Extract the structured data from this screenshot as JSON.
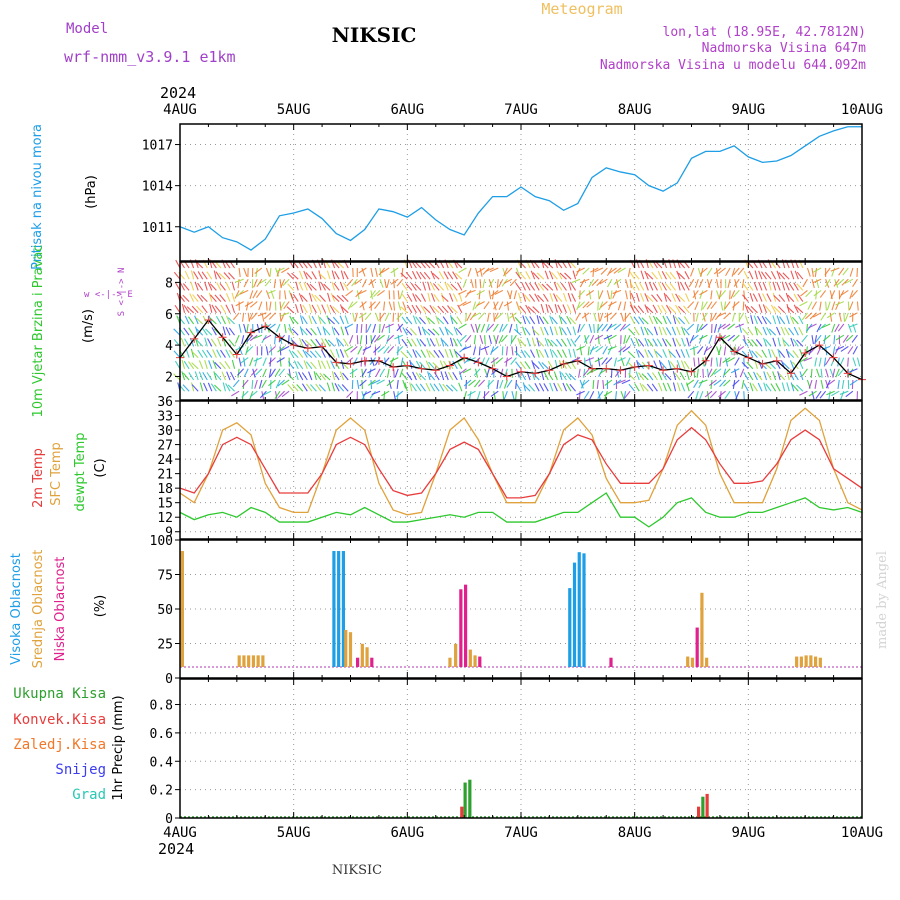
{
  "header": {
    "model_label": "Model",
    "model_name": "wrf-nmm_v3.9.1 e1km",
    "station": "NIKSIC",
    "chart_kind": "Meteogram",
    "coords": "lon,lat (18.95E, 42.7812N)",
    "altitude": "Nadmorska Visina 647m",
    "model_altitude": "Nadmorska Visina u modelu 644.092m",
    "footer_station": "NIKSIC",
    "credit": "made by Angel"
  },
  "colors": {
    "pressure": "#1e9ee6",
    "t2m": "#e83c3c",
    "sfc": "#e0a23c",
    "dew": "#2ec82e",
    "high_cloud": "#1e9ee6",
    "mid_cloud": "#e0a23c",
    "low_cloud": "#e0208c",
    "total_precip": "#2ea02e",
    "conv_precip": "#e83c3c",
    "frz_precip": "#f07828",
    "snow": "#3c3cf0",
    "grad": "#28c8b4",
    "wind_label": "#2ec82e"
  },
  "chart_data": [
    {
      "type": "line",
      "title": "",
      "ylabel": "Pritisak na nivou mora",
      "unit": "(hPa)",
      "x_ticks": [
        "4AUG",
        "5AUG",
        "6AUG",
        "7AUG",
        "8AUG",
        "9AUG",
        "10AUG"
      ],
      "year": "2024",
      "ylim": [
        1008.5,
        1018.5
      ],
      "yticks": [
        1011,
        1014,
        1017
      ],
      "x_hours": [
        0,
        3,
        6,
        9,
        12,
        15,
        18,
        21,
        24,
        27,
        30,
        33,
        36,
        39,
        42,
        45,
        48,
        51,
        54,
        57,
        60,
        63,
        66,
        69,
        72,
        75,
        78,
        81,
        84,
        87,
        90,
        93,
        96,
        99,
        102,
        105,
        108,
        111,
        114,
        117,
        120,
        123,
        126,
        129,
        132,
        135,
        138,
        141,
        144
      ],
      "series": [
        {
          "name": "Pritisak na nivou mora",
          "values": [
            1011.0,
            1010.6,
            1011.0,
            1010.2,
            1009.9,
            1009.3,
            1010.1,
            1011.8,
            1012.0,
            1012.3,
            1011.6,
            1010.5,
            1010.0,
            1010.8,
            1012.3,
            1012.1,
            1011.7,
            1012.4,
            1011.5,
            1010.8,
            1010.4,
            1012.0,
            1013.2,
            1013.2,
            1013.9,
            1013.2,
            1012.9,
            1012.2,
            1012.7,
            1014.6,
            1015.3,
            1015.0,
            1014.8,
            1014.0,
            1013.6,
            1014.2,
            1016.0,
            1016.5,
            1016.5,
            1016.9,
            1016.1,
            1015.7,
            1015.8,
            1016.2,
            1016.9,
            1017.6,
            1018.0,
            1018.3,
            1018.3
          ]
        }
      ],
      "grid": true
    },
    {
      "type": "scatter",
      "title": "",
      "ylabel": "10m Vjetar Brzina i Pravac",
      "unit": "(m/s)",
      "direction_key": "w <-|-> E",
      "direction_key_ns": "S <-|-> N",
      "ylim": [
        0.5,
        9.3
      ],
      "yticks": [
        2,
        4,
        6,
        8
      ],
      "x_hours": [
        0,
        3,
        6,
        9,
        12,
        15,
        18,
        21,
        24,
        27,
        30,
        33,
        36,
        39,
        42,
        45,
        48,
        51,
        54,
        57,
        60,
        63,
        66,
        69,
        72,
        75,
        78,
        81,
        84,
        87,
        90,
        93,
        96,
        99,
        102,
        105,
        108,
        111,
        114,
        117,
        120,
        123,
        126,
        129,
        132,
        135,
        138,
        141,
        144
      ],
      "series": [
        {
          "name": "10m Vjetar",
          "values": [
            3.2,
            4.4,
            5.6,
            4.5,
            3.4,
            4.8,
            5.2,
            4.5,
            4.0,
            3.8,
            3.9,
            2.9,
            2.8,
            3.0,
            3.0,
            2.6,
            2.7,
            2.5,
            2.4,
            2.7,
            3.2,
            2.9,
            2.5,
            2.0,
            2.3,
            2.2,
            2.4,
            2.8,
            3.0,
            2.5,
            2.5,
            2.4,
            2.6,
            2.7,
            2.4,
            2.5,
            2.3,
            3.0,
            4.5,
            3.6,
            3.2,
            2.8,
            3.0,
            2.2,
            3.5,
            4.0,
            3.2,
            2.2,
            1.8
          ]
        }
      ],
      "grid": true
    },
    {
      "type": "line",
      "title": "",
      "ylabels": [
        "2m Temp",
        "SFC Temp",
        "dewpt Temp"
      ],
      "unit": "(C)",
      "ylim": [
        7.5,
        36
      ],
      "yticks": [
        9,
        12,
        15,
        18,
        21,
        24,
        27,
        30,
        33,
        36
      ],
      "x_hours": [
        0,
        3,
        6,
        9,
        12,
        15,
        18,
        21,
        24,
        27,
        30,
        33,
        36,
        39,
        42,
        45,
        48,
        51,
        54,
        57,
        60,
        63,
        66,
        69,
        72,
        75,
        78,
        81,
        84,
        87,
        90,
        93,
        96,
        99,
        102,
        105,
        108,
        111,
        114,
        117,
        120,
        123,
        126,
        129,
        132,
        135,
        138,
        141,
        144
      ],
      "series": [
        {
          "name": "2m Temp",
          "values": [
            18,
            17,
            21,
            27,
            28.5,
            27,
            22,
            17,
            17,
            17,
            21,
            27,
            28.5,
            27,
            22,
            17.5,
            16.5,
            17,
            21,
            26,
            27.5,
            26,
            21,
            16,
            16,
            16.5,
            21,
            27,
            29,
            28,
            23,
            19,
            19,
            19,
            22,
            28,
            30.5,
            28,
            23,
            19,
            19,
            19.5,
            23,
            28,
            30,
            28,
            22,
            20,
            18
          ]
        },
        {
          "name": "SFC Temp",
          "values": [
            17,
            15,
            21,
            30,
            31.5,
            29,
            19,
            14,
            13,
            13,
            21,
            30,
            32.5,
            30,
            19,
            13.5,
            12.5,
            13,
            21,
            30,
            32.5,
            28,
            21,
            15,
            15,
            15,
            21,
            30,
            32.5,
            29,
            20,
            15,
            15,
            15.5,
            22,
            31,
            34,
            31,
            21,
            15,
            15,
            15,
            22,
            32,
            34.5,
            32,
            22,
            15,
            13.5
          ]
        },
        {
          "name": "dewpt Temp",
          "values": [
            13,
            11.5,
            12.5,
            13,
            12,
            14,
            13,
            11,
            11,
            11,
            12,
            13,
            12.5,
            14,
            12.5,
            11,
            11,
            11.5,
            12,
            12.5,
            12,
            13,
            13,
            11,
            11,
            11,
            12,
            13,
            13,
            15,
            17,
            12,
            12,
            10,
            12,
            15,
            16,
            13,
            12,
            12,
            13,
            13,
            14,
            15,
            16,
            14,
            13.5,
            14,
            13
          ]
        }
      ],
      "grid": true
    },
    {
      "type": "bar",
      "title": "",
      "ylabels": [
        "Visoka Oblacnost",
        "Srednja Oblacnost",
        "Niska Oblacnost"
      ],
      "unit": "(%)",
      "ylim": [
        0,
        100
      ],
      "yticks": [
        0,
        25,
        50,
        75,
        100
      ],
      "bars": [
        {
          "layer": "mid",
          "hour": 0.5,
          "value": 100
        },
        {
          "layer": "mid",
          "hour": 12.5,
          "value": 10
        },
        {
          "layer": "mid",
          "hour": 13.5,
          "value": 10
        },
        {
          "layer": "mid",
          "hour": 14.5,
          "value": 10
        },
        {
          "layer": "mid",
          "hour": 15.5,
          "value": 10
        },
        {
          "layer": "mid",
          "hour": 16.5,
          "value": 10
        },
        {
          "layer": "mid",
          "hour": 17.5,
          "value": 10
        },
        {
          "layer": "high",
          "hour": 32.5,
          "value": 100
        },
        {
          "layer": "high",
          "hour": 33.5,
          "value": 100
        },
        {
          "layer": "high",
          "hour": 34.5,
          "value": 100
        },
        {
          "layer": "mid",
          "hour": 35.0,
          "value": 32
        },
        {
          "layer": "mid",
          "hour": 36.0,
          "value": 30
        },
        {
          "layer": "low",
          "hour": 37.5,
          "value": 8
        },
        {
          "layer": "mid",
          "hour": 38.5,
          "value": 20
        },
        {
          "layer": "mid",
          "hour": 39.5,
          "value": 17
        },
        {
          "layer": "low",
          "hour": 40.5,
          "value": 8
        },
        {
          "layer": "mid",
          "hour": 57.0,
          "value": 8
        },
        {
          "layer": "mid",
          "hour": 58.2,
          "value": 20
        },
        {
          "layer": "low",
          "hour": 59.3,
          "value": 67
        },
        {
          "layer": "low",
          "hour": 60.3,
          "value": 71
        },
        {
          "layer": "mid",
          "hour": 61.3,
          "value": 15
        },
        {
          "layer": "mid",
          "hour": 62.3,
          "value": 10
        },
        {
          "layer": "low",
          "hour": 63.3,
          "value": 9
        },
        {
          "layer": "high",
          "hour": 82.3,
          "value": 68
        },
        {
          "layer": "high",
          "hour": 83.3,
          "value": 90
        },
        {
          "layer": "high",
          "hour": 84.3,
          "value": 99
        },
        {
          "layer": "high",
          "hour": 85.3,
          "value": 98
        },
        {
          "layer": "low",
          "hour": 91.0,
          "value": 8
        },
        {
          "layer": "mid",
          "hour": 107.2,
          "value": 9
        },
        {
          "layer": "mid",
          "hour": 108.2,
          "value": 8
        },
        {
          "layer": "low",
          "hour": 109.2,
          "value": 34
        },
        {
          "layer": "mid",
          "hour": 110.2,
          "value": 64
        },
        {
          "layer": "mid",
          "hour": 111.2,
          "value": 8
        },
        {
          "layer": "mid",
          "hour": 130.2,
          "value": 9
        },
        {
          "layer": "mid",
          "hour": 131.2,
          "value": 9
        },
        {
          "layer": "mid",
          "hour": 132.2,
          "value": 10
        },
        {
          "layer": "mid",
          "hour": 133.2,
          "value": 10
        },
        {
          "layer": "mid",
          "hour": 134.2,
          "value": 9
        },
        {
          "layer": "mid",
          "hour": 135.2,
          "value": 8
        }
      ],
      "grid": true
    },
    {
      "type": "bar",
      "title": "",
      "ylabels": [
        "Ukupna Kisa",
        "Konvek.Kisa",
        "Zaledj.Kisa",
        "Snijeg",
        "Grad"
      ],
      "axis_label": "1hr Precip (mm)",
      "ylim": [
        0,
        0.98
      ],
      "yticks": [
        0,
        0.2,
        0.4,
        0.6,
        0.8
      ],
      "bars": [
        {
          "type": "conv",
          "hour": 59.5,
          "value": 0.08
        },
        {
          "type": "total",
          "hour": 60.2,
          "value": 0.25
        },
        {
          "type": "total",
          "hour": 61.2,
          "value": 0.27
        },
        {
          "type": "conv",
          "hour": 109.5,
          "value": 0.08
        },
        {
          "type": "total",
          "hour": 110.4,
          "value": 0.15
        },
        {
          "type": "conv",
          "hour": 111.3,
          "value": 0.17
        }
      ],
      "grid": true
    }
  ]
}
